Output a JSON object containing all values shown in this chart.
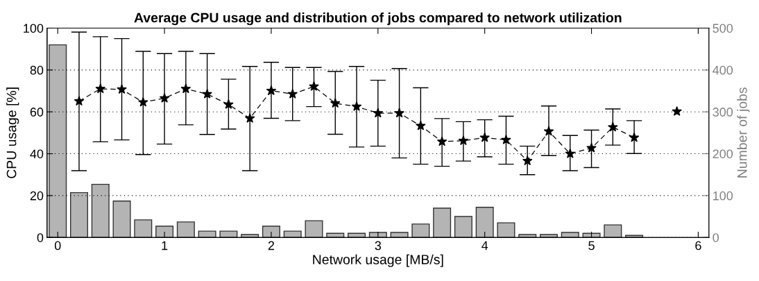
{
  "chart_data": {
    "type": "bar",
    "title": "Average CPU usage and distribution of jobs compared to network utilization",
    "xlabel": "Network usage [MB/s]",
    "ylabel": "CPU usage [%]",
    "y2label": "Number of jobs",
    "x": [
      0,
      0.2,
      0.4,
      0.6,
      0.8,
      1.0,
      1.2,
      1.4,
      1.6,
      1.8,
      2.0,
      2.2,
      2.4,
      2.6,
      2.8,
      3.0,
      3.2,
      3.4,
      3.6,
      3.8,
      4.0,
      4.2,
      4.4,
      4.6,
      4.8,
      5.0,
      5.2,
      5.4,
      5.6,
      5.8
    ],
    "series": [
      {
        "axis": "y2",
        "color": "#b4b4b4",
        "values": [
          460,
          107,
          127,
          87,
          42,
          27,
          37,
          15,
          15,
          7,
          27,
          15,
          40,
          10,
          10,
          12,
          12,
          32,
          70,
          50,
          72,
          35,
          7,
          7,
          12,
          10,
          30,
          5,
          null,
          null
        ]
      },
      {
        "type": "line",
        "color": "#000000",
        "marker": "star",
        "line_style": "dashed",
        "values": [
          null,
          65.1,
          71.0,
          70.7,
          64.6,
          66.5,
          71.0,
          68.5,
          63.5,
          56.9,
          70.1,
          68.5,
          72.1,
          64.1,
          62.5,
          59.4,
          59.4,
          53.3,
          45.8,
          46.2,
          47.7,
          46.6,
          36.6,
          50.7,
          40.0,
          42.7,
          52.7,
          47.7,
          null,
          60.2
        ],
        "errors": [
          null,
          [
            31.9,
            98.1
          ],
          [
            45.7,
            95.9
          ],
          [
            46.6,
            95.0
          ],
          [
            39.6,
            88.9
          ],
          [
            44.6,
            87.8
          ],
          [
            53.8,
            88.9
          ],
          [
            49.2,
            87.8
          ],
          [
            51.8,
            75.6
          ],
          [
            31.9,
            81.7
          ],
          [
            56.9,
            83.7
          ],
          [
            55.8,
            81.2
          ],
          [
            62.5,
            81.2
          ],
          [
            49.3,
            79.3
          ],
          [
            43.2,
            81.7
          ],
          [
            43.6,
            75.1
          ],
          [
            38.0,
            80.7
          ],
          [
            35.0,
            71.5
          ],
          [
            34.0,
            56.8
          ],
          [
            36.5,
            55.3
          ],
          [
            38.5,
            56.2
          ],
          [
            35.0,
            57.9
          ],
          [
            30.0,
            43.6
          ],
          [
            39.1,
            62.8
          ],
          [
            31.9,
            48.7
          ],
          [
            33.4,
            51.3
          ],
          [
            44.1,
            61.4
          ],
          [
            40.1,
            55.8
          ],
          null,
          null
        ]
      }
    ],
    "xlim": [
      -0.1,
      6.1
    ],
    "xticks": [
      0,
      1,
      2,
      3,
      4,
      5,
      6
    ],
    "ylim": [
      0,
      100
    ],
    "yticks": [
      0,
      20,
      40,
      60,
      80,
      100
    ],
    "y2lim": [
      0,
      500
    ],
    "y2ticks": [
      0,
      100,
      200,
      300,
      400,
      500
    ],
    "grid": "y",
    "legend": false
  }
}
